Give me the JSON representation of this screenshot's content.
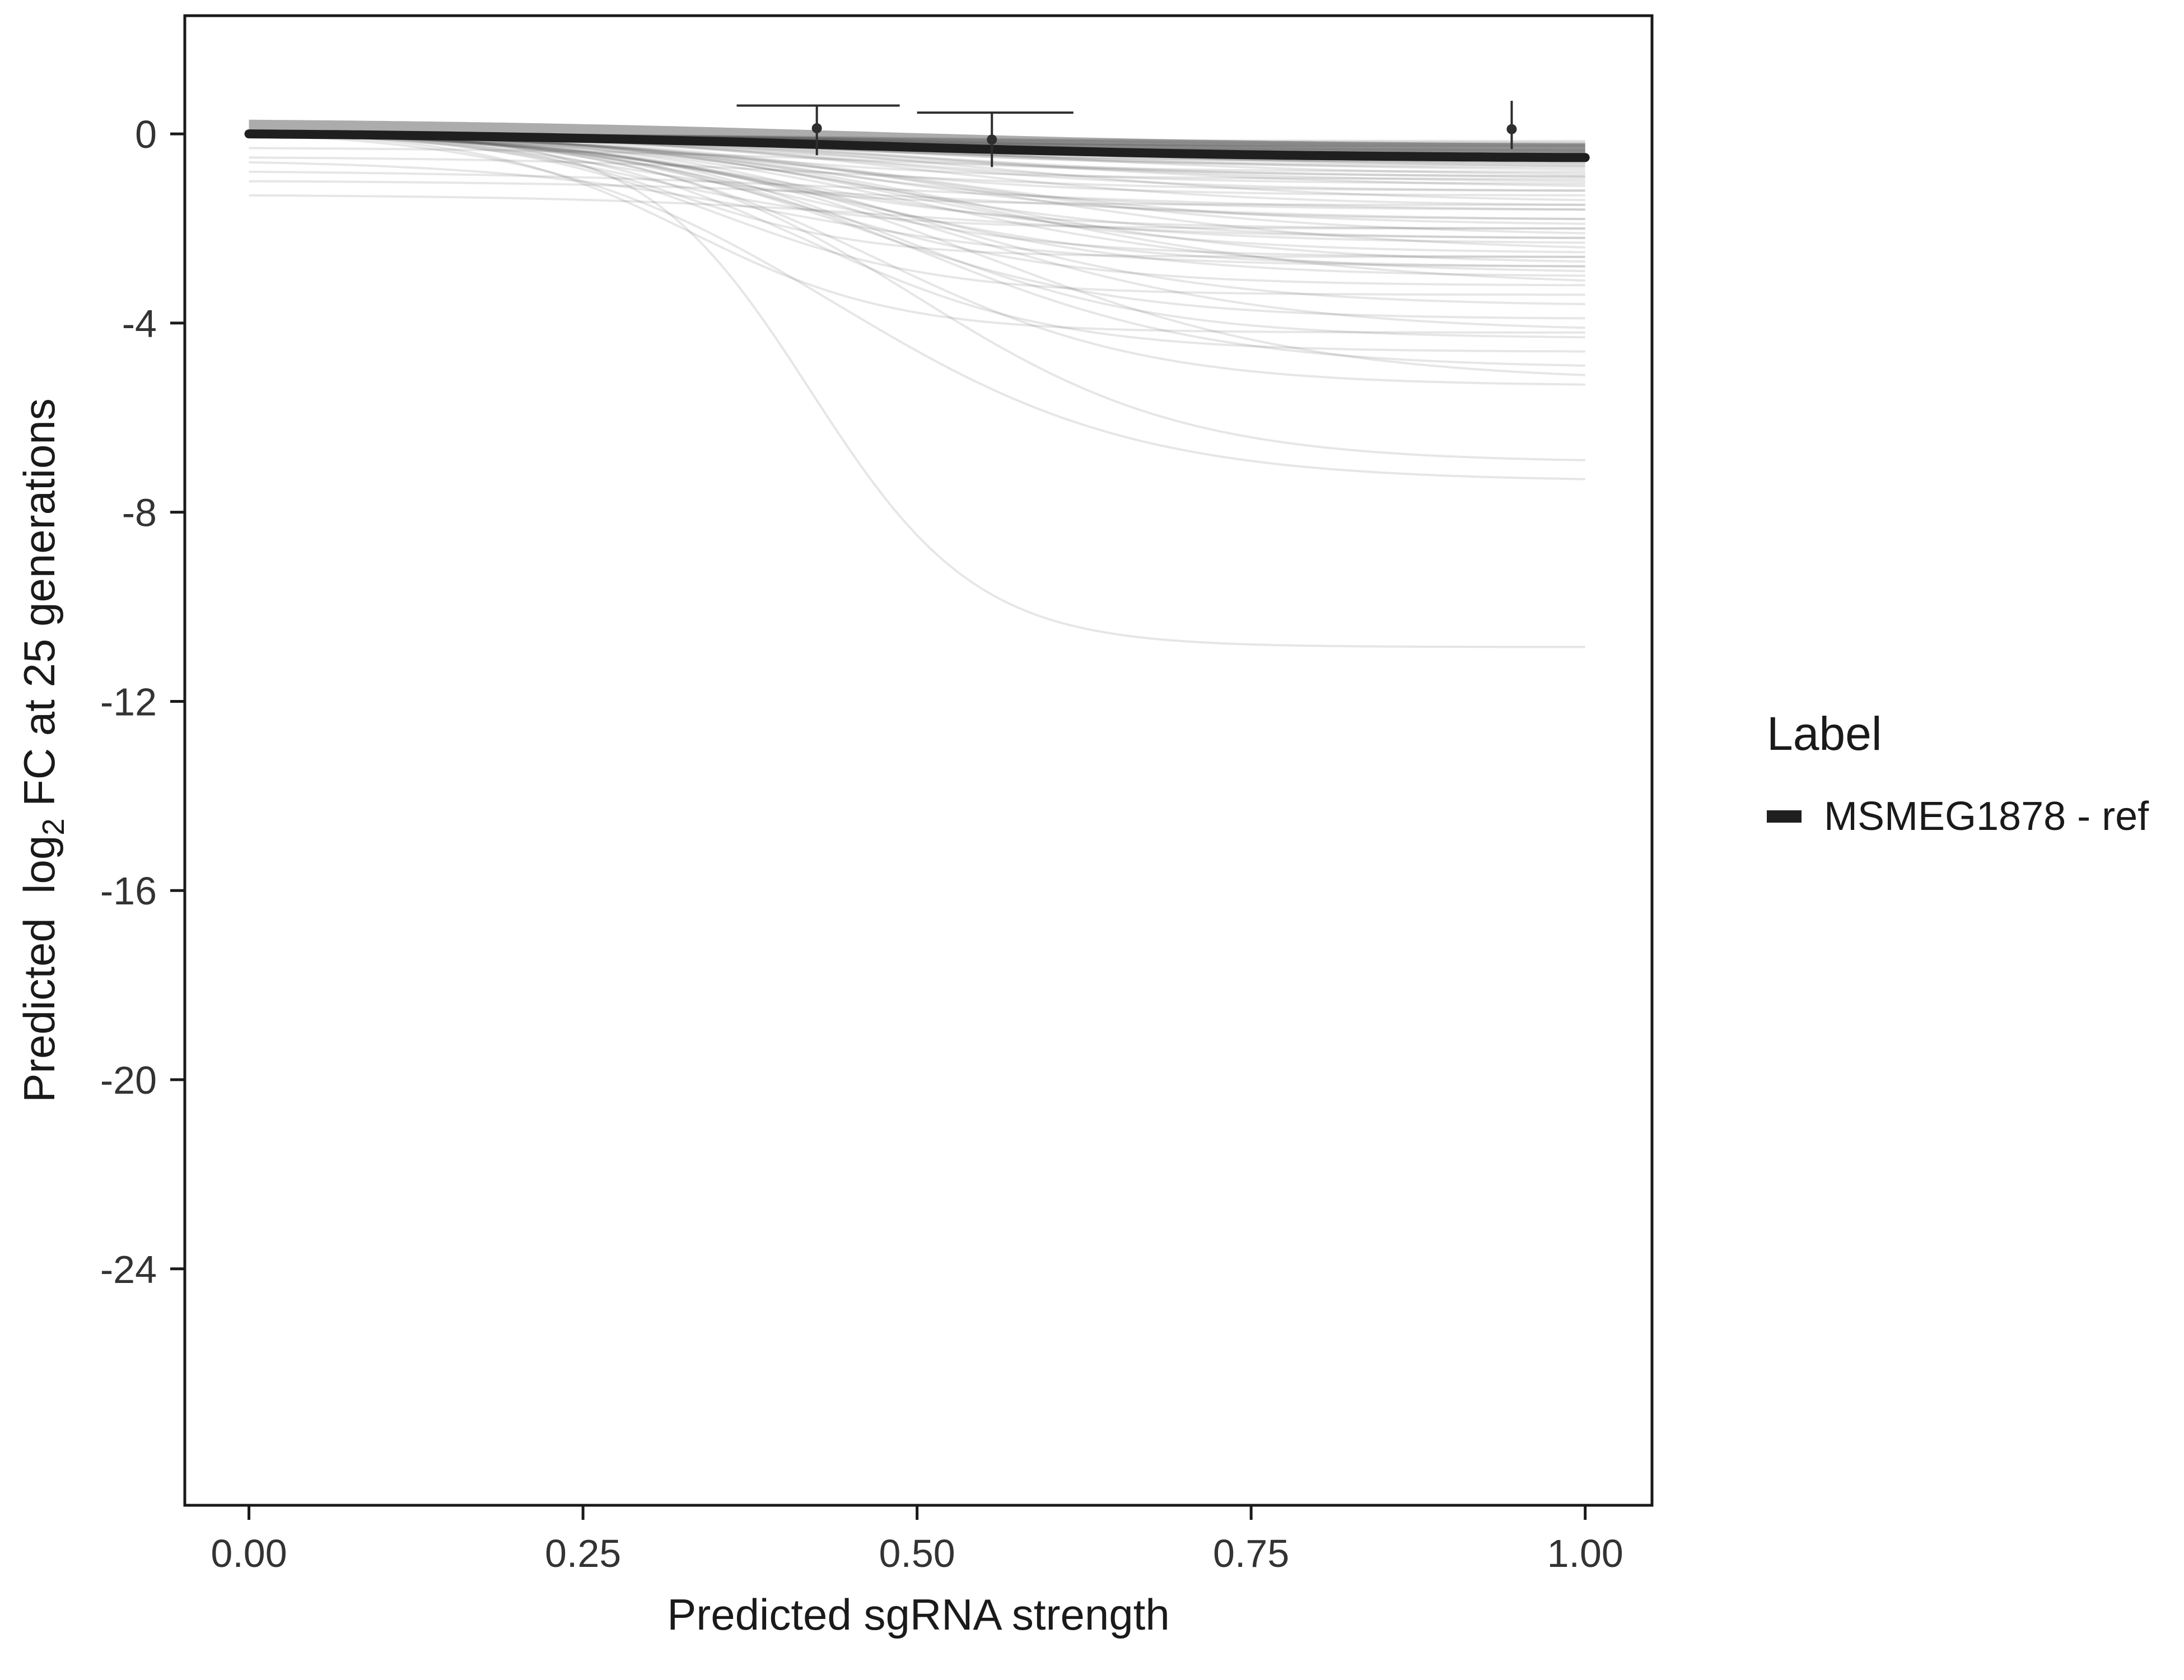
{
  "chart_data": {
    "type": "line",
    "title": "",
    "xlabel": "Predicted sgRNA strength",
    "ylabel_parts": {
      "pre": "Predicted  log",
      "sub": "2",
      "post": " FC at 25 generations"
    },
    "xlim": [
      -0.048,
      1.05
    ],
    "ylim": [
      -29.0,
      2.5
    ],
    "xticks": [
      "0.00",
      "0.25",
      "0.50",
      "0.75",
      "1.00"
    ],
    "xtick_values": [
      0,
      0.25,
      0.5,
      0.75,
      1.0
    ],
    "yticks": [
      "0",
      "-4",
      "-8",
      "-12",
      "-16",
      "-20",
      "-24"
    ],
    "ytick_values": [
      0,
      -4,
      -8,
      -12,
      -16,
      -20,
      -24
    ],
    "grid": false,
    "legend_position": "right",
    "legend": {
      "title": "Label",
      "entries": [
        {
          "label": "MSMEG1878 - ref",
          "color": "#1f1f1f"
        }
      ]
    },
    "reference_series": {
      "name": "MSMEG1878 - ref",
      "color": "#1f1f1f",
      "plateau": -0.5,
      "midpoint": 0.45,
      "steepness": 6
    },
    "ribbon": {
      "upper_offset": 0.3,
      "lower_offset": -0.05,
      "color": "#a8a8a8",
      "opacity": 0.95
    },
    "background_series": {
      "color": "#4d4d4d",
      "opacity": 0.14,
      "curves": [
        [
          0,
          -0.15,
          0.4,
          8
        ],
        [
          0,
          -0.18,
          0.5,
          7
        ],
        [
          0,
          -0.2,
          0.45,
          9
        ],
        [
          0,
          -0.22,
          0.45,
          8
        ],
        [
          0,
          -0.24,
          0.55,
          6
        ],
        [
          0,
          -0.26,
          0.42,
          8
        ],
        [
          0,
          -0.28,
          0.5,
          7
        ],
        [
          0,
          -0.3,
          0.48,
          7
        ],
        [
          0,
          -0.32,
          0.4,
          9
        ],
        [
          0,
          -0.34,
          0.52,
          9
        ],
        [
          0,
          -0.36,
          0.38,
          8
        ],
        [
          0,
          -0.38,
          0.48,
          6
        ],
        [
          0,
          -0.4,
          0.5,
          7
        ],
        [
          0,
          -0.42,
          0.52,
          8
        ],
        [
          0,
          -0.44,
          0.46,
          9
        ],
        [
          0,
          -0.45,
          0.38,
          10
        ],
        [
          0,
          -0.48,
          0.58,
          7
        ],
        [
          0,
          -0.5,
          0.44,
          7
        ],
        [
          0,
          -0.52,
          0.54,
          6
        ],
        [
          0,
          -0.55,
          0.5,
          9
        ],
        [
          0,
          -0.58,
          0.4,
          8
        ],
        [
          0,
          -0.6,
          0.42,
          8
        ],
        [
          0,
          -0.62,
          0.5,
          7
        ],
        [
          0,
          -0.65,
          0.44,
          9
        ],
        [
          0,
          -0.68,
          0.56,
          6
        ],
        [
          0,
          -0.35,
          0.55,
          6
        ],
        [
          0,
          -0.25,
          0.36,
          9
        ],
        [
          0,
          -0.7,
          0.45,
          8
        ],
        [
          0,
          -0.75,
          0.5,
          6
        ],
        [
          0,
          -0.8,
          0.4,
          9
        ],
        [
          0,
          -0.85,
          0.55,
          7
        ],
        [
          0,
          -0.9,
          0.48,
          8
        ],
        [
          0,
          -0.95,
          0.35,
          10
        ],
        [
          0,
          -1.0,
          0.5,
          7
        ],
        [
          0,
          -1.05,
          0.44,
          9
        ],
        [
          0,
          -1.1,
          0.52,
          6
        ],
        [
          0,
          -1.2,
          0.46,
          8
        ],
        [
          0,
          -1.3,
          0.4,
          9
        ],
        [
          0,
          -1.4,
          0.55,
          7
        ],
        [
          0,
          -1.5,
          0.5,
          8
        ],
        [
          0,
          -1.6,
          0.42,
          9
        ],
        [
          -0.3,
          -0.9,
          0.5,
          7
        ],
        [
          -0.5,
          -1.2,
          0.45,
          8
        ],
        [
          -0.8,
          -1.6,
          0.5,
          6
        ],
        [
          -1.0,
          -1.8,
          0.55,
          7
        ],
        [
          -1.3,
          -2.2,
          0.5,
          8
        ],
        [
          -0.6,
          -2.8,
          0.4,
          9
        ],
        [
          0,
          -1.8,
          0.45,
          9
        ],
        [
          0,
          -1.9,
          0.5,
          8
        ],
        [
          0,
          -2.0,
          0.38,
          10
        ],
        [
          0,
          -2.1,
          0.52,
          7
        ],
        [
          0,
          -2.2,
          0.46,
          9
        ],
        [
          0,
          -2.3,
          0.42,
          8
        ],
        [
          0,
          -2.4,
          0.55,
          7
        ],
        [
          0,
          -2.5,
          0.48,
          9
        ],
        [
          0,
          -2.6,
          0.4,
          10
        ],
        [
          0,
          -2.7,
          0.52,
          8
        ],
        [
          0,
          -2.8,
          0.44,
          9
        ],
        [
          0,
          -2.9,
          0.5,
          8
        ],
        [
          0,
          -3.0,
          0.46,
          9
        ],
        [
          0,
          -3.1,
          0.55,
          7
        ],
        [
          0,
          -3.2,
          0.42,
          10
        ],
        [
          0,
          -1.5,
          0.28,
          12
        ],
        [
          0,
          -2.0,
          0.3,
          12
        ],
        [
          0,
          -2.6,
          0.32,
          14
        ],
        [
          0,
          -3.4,
          0.35,
          12
        ],
        [
          0,
          -4.2,
          0.33,
          13
        ],
        [
          0,
          -3.6,
          0.5,
          9
        ],
        [
          0,
          -3.9,
          0.45,
          10
        ],
        [
          0,
          -4.1,
          0.52,
          8
        ],
        [
          0,
          -4.3,
          0.48,
          10
        ],
        [
          0,
          -4.6,
          0.42,
          11
        ],
        [
          0,
          -4.9,
          0.5,
          9
        ],
        [
          0,
          -5.1,
          0.55,
          8
        ],
        [
          0,
          -5.3,
          0.47,
          10
        ],
        [
          0,
          -6.9,
          0.5,
          10
        ],
        [
          0,
          -7.3,
          0.44,
          9
        ],
        [
          0,
          -10.85,
          0.42,
          16
        ]
      ]
    },
    "points": [
      {
        "x": 0.425,
        "y": 0.12,
        "err_lo": -0.45,
        "err_hi": 0.6,
        "range_y": 0.6,
        "range_x0": 0.365,
        "range_x1": 0.487
      },
      {
        "x": 0.556,
        "y": -0.12,
        "err_lo": -0.7,
        "err_hi": 0.45,
        "range_y": 0.45,
        "range_x0": 0.5,
        "range_x1": 0.617
      },
      {
        "x": 0.945,
        "y": 0.1,
        "err_lo": -0.32,
        "err_hi": 0.7,
        "range_y": null,
        "range_x0": null,
        "range_x1": null
      }
    ]
  }
}
